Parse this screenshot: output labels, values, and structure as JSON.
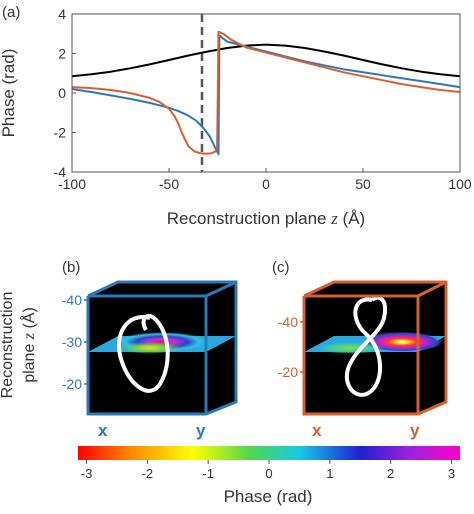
{
  "chart_data": [
    {
      "type": "line",
      "panel_label": "(a)",
      "xlabel": "Reconstruction plane z (Å)",
      "xlabel_main": "Reconstruction plane ",
      "xlabel_var": "z",
      "xlabel_unit": " (Å)",
      "ylabel": "Phase (rad)",
      "xlim": [
        -100,
        100
      ],
      "ylim": [
        -4,
        4
      ],
      "xticks": [
        -100,
        -50,
        0,
        50,
        100
      ],
      "yticks": [
        -4,
        -2,
        0,
        2,
        4
      ],
      "grid": false,
      "vline_x": -33,
      "series": [
        {
          "color": "#000000",
          "x": [
            -100,
            -90,
            -80,
            -70,
            -60,
            -50,
            -40,
            -30,
            -20,
            -10,
            0,
            10,
            20,
            30,
            40,
            50,
            60,
            70,
            80,
            90,
            100
          ],
          "y": [
            0.85,
            0.95,
            1.08,
            1.25,
            1.45,
            1.67,
            1.9,
            2.1,
            2.28,
            2.4,
            2.45,
            2.4,
            2.28,
            2.1,
            1.9,
            1.67,
            1.45,
            1.25,
            1.08,
            0.95,
            0.85
          ]
        },
        {
          "color": "#2a7ab8",
          "x": [
            -100,
            -90,
            -80,
            -70,
            -60,
            -50,
            -45,
            -40,
            -36,
            -32,
            -29,
            -27,
            -25.5,
            -24.5,
            -24,
            -20,
            -10,
            0,
            10,
            20,
            30,
            40,
            50,
            60,
            70,
            80,
            90,
            100
          ],
          "y": [
            0.2,
            0.05,
            -0.12,
            -0.3,
            -0.5,
            -0.75,
            -0.92,
            -1.15,
            -1.4,
            -1.8,
            -2.2,
            -2.6,
            -2.9,
            -3.1,
            2.9,
            2.6,
            2.35,
            2.1,
            1.85,
            1.6,
            1.4,
            1.2,
            1.05,
            0.9,
            0.75,
            0.6,
            0.45,
            0.3
          ]
        },
        {
          "color": "#d8602e",
          "x": [
            -100,
            -90,
            -80,
            -70,
            -60,
            -55,
            -50,
            -47,
            -45,
            -43,
            -40,
            -37,
            -34,
            -31,
            -28,
            -26,
            -25.2,
            -24.5,
            -22,
            -18,
            -10,
            0,
            10,
            20,
            30,
            40,
            50,
            60,
            70,
            80,
            90,
            100
          ],
          "y": [
            0.3,
            0.25,
            0.15,
            0.0,
            -0.25,
            -0.45,
            -0.8,
            -1.2,
            -1.6,
            -2.1,
            -2.7,
            -2.95,
            -3.05,
            -3.08,
            -3.05,
            -2.95,
            -2.8,
            3.1,
            3.0,
            2.7,
            2.3,
            2.05,
            1.8,
            1.55,
            1.3,
            1.05,
            0.85,
            0.65,
            0.45,
            0.3,
            0.15,
            0.05
          ]
        }
      ]
    },
    {
      "type": "heatmap",
      "panel_label": "(b)",
      "ylabel": "Reconstruction plane z (Å)",
      "ylabel_line1": "Reconstruction",
      "ylabel_line2_main": "plane ",
      "ylabel_line2_var": "z",
      "ylabel_line2_unit": " (Å)",
      "zticks": [
        -40,
        -30,
        -20
      ],
      "axis_labels": [
        "x",
        "y"
      ],
      "frame_color": "#2a7ab8"
    },
    {
      "type": "heatmap",
      "panel_label": "(c)",
      "zticks": [
        -40,
        -20
      ],
      "axis_labels": [
        "x",
        "y"
      ],
      "frame_color": "#d8602e"
    }
  ],
  "colorbar": {
    "label": "Phase (rad)",
    "range": [
      -3.14,
      3.14
    ],
    "ticks": [
      -3,
      -2,
      -1,
      0,
      1,
      2,
      3
    ],
    "colors": [
      "#ff0000",
      "#ff8a00",
      "#ffff00",
      "#4fd84f",
      "#18c8e8",
      "#2020d0",
      "#a020e0",
      "#ff00c8"
    ]
  }
}
